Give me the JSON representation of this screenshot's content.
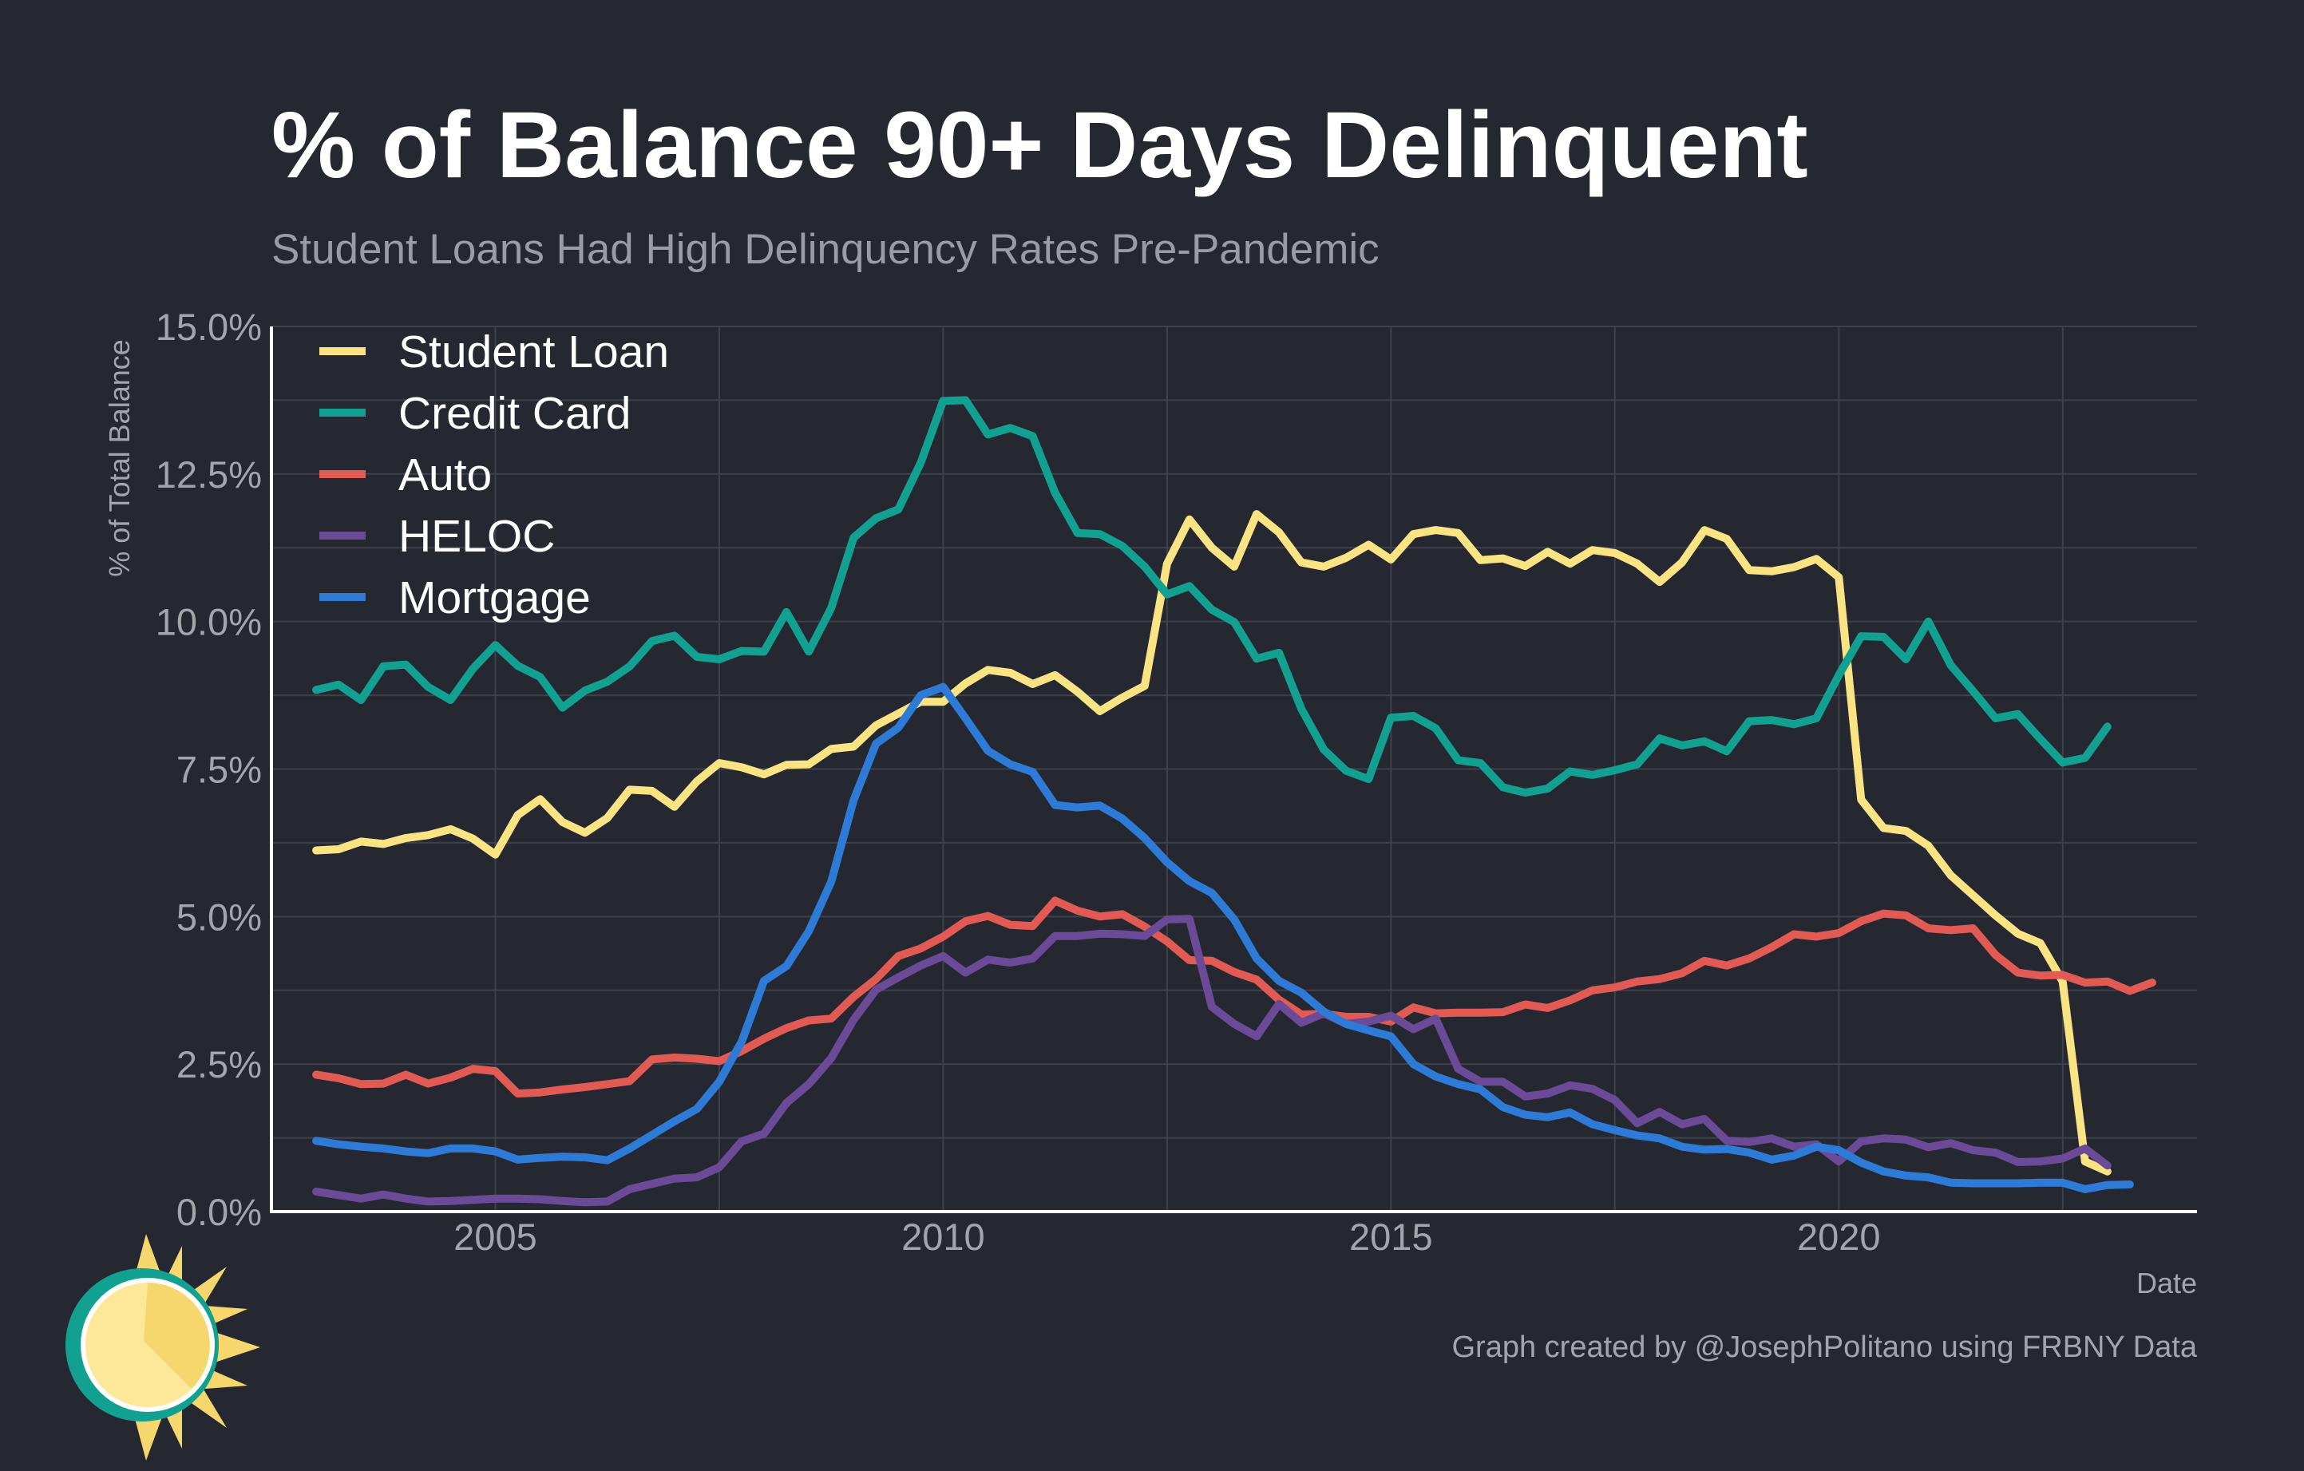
{
  "chart_data": {
    "type": "line",
    "title": "% of Balance 90+ Days Delinquent",
    "subtitle": "Student Loans Had High Delinquency Rates Pre-Pandemic",
    "xlabel": "Date",
    "ylabel": "% of Total Balance",
    "caption": "Graph created by @JosephPolitano using FRBNY Data",
    "xlim": [
      2002.5,
      2024.0
    ],
    "ylim": [
      0,
      15
    ],
    "x_ticks": [
      2005,
      2010,
      2015,
      2020
    ],
    "x_tick_labels": [
      "2005",
      "2010",
      "2015",
      "2020"
    ],
    "y_ticks": [
      0,
      2.5,
      5,
      7.5,
      10,
      12.5,
      15
    ],
    "y_tick_labels": [
      "0.0%",
      "2.5%",
      "5.0%",
      "7.5%",
      "10.0%",
      "12.5%",
      "15.0%"
    ],
    "grid": true,
    "legend_position": "top-left",
    "x_start": 2003.0,
    "x_step": 0.25,
    "series": [
      {
        "name": "Student Loan",
        "color": "#f9e383",
        "values": [
          6.12,
          6.14,
          6.27,
          6.23,
          6.33,
          6.38,
          6.48,
          6.32,
          6.05,
          6.72,
          6.99,
          6.6,
          6.42,
          6.67,
          7.15,
          7.13,
          6.86,
          7.29,
          7.6,
          7.53,
          7.41,
          7.57,
          7.58,
          7.84,
          7.88,
          8.24,
          8.44,
          8.64,
          8.64,
          8.95,
          9.18,
          9.13,
          8.94,
          9.09,
          8.81,
          8.48,
          8.71,
          8.91,
          10.98,
          11.73,
          11.25,
          10.93,
          11.82,
          11.51,
          11.0,
          10.93,
          11.08,
          11.3,
          11.05,
          11.48,
          11.55,
          11.5,
          11.04,
          11.07,
          10.94,
          11.18,
          10.98,
          11.21,
          11.16,
          10.98,
          10.67,
          11.0,
          11.55,
          11.4,
          10.87,
          10.85,
          10.92,
          11.06,
          10.75,
          6.98,
          6.5,
          6.45,
          6.2,
          5.7,
          5.36,
          5.02,
          4.71,
          4.55,
          3.9,
          0.85,
          0.68
        ]
      },
      {
        "name": "Credit Card",
        "color": "#12a091",
        "values": [
          8.84,
          8.93,
          8.67,
          9.24,
          9.27,
          8.89,
          8.67,
          9.2,
          9.6,
          9.25,
          9.06,
          8.54,
          8.83,
          8.98,
          9.24,
          9.67,
          9.76,
          9.4,
          9.36,
          9.5,
          9.49,
          10.16,
          9.49,
          10.23,
          11.42,
          11.75,
          11.9,
          12.69,
          13.74,
          13.75,
          13.17,
          13.28,
          13.14,
          12.18,
          11.5,
          11.48,
          11.28,
          10.93,
          10.46,
          10.6,
          10.2,
          9.99,
          9.37,
          9.47,
          8.52,
          7.83,
          7.47,
          7.33,
          8.37,
          8.4,
          8.19,
          7.65,
          7.6,
          7.19,
          7.1,
          7.17,
          7.46,
          7.4,
          7.48,
          7.58,
          8.02,
          7.9,
          7.97,
          7.8,
          8.31,
          8.33,
          8.26,
          8.36,
          9.09,
          9.75,
          9.74,
          9.36,
          10.0,
          9.26,
          8.82,
          8.36,
          8.43,
          8.01,
          7.61,
          7.69,
          8.22
        ]
      },
      {
        "name": "Auto",
        "color": "#e15a54",
        "values": [
          2.32,
          2.26,
          2.16,
          2.17,
          2.32,
          2.17,
          2.27,
          2.42,
          2.38,
          2.0,
          2.02,
          2.07,
          2.11,
          2.16,
          2.21,
          2.58,
          2.61,
          2.59,
          2.55,
          2.72,
          2.93,
          3.11,
          3.24,
          3.27,
          3.64,
          3.94,
          4.33,
          4.46,
          4.66,
          4.92,
          5.01,
          4.86,
          4.84,
          5.27,
          5.1,
          5.0,
          5.04,
          4.83,
          4.58,
          4.26,
          4.25,
          4.06,
          3.93,
          3.59,
          3.34,
          3.35,
          3.3,
          3.3,
          3.22,
          3.46,
          3.36,
          3.37,
          3.37,
          3.38,
          3.51,
          3.45,
          3.58,
          3.75,
          3.8,
          3.9,
          3.94,
          4.04,
          4.25,
          4.17,
          4.29,
          4.48,
          4.7,
          4.66,
          4.72,
          4.92,
          5.05,
          5.02,
          4.8,
          4.77,
          4.8,
          4.35,
          4.05,
          4.0,
          4.01,
          3.88,
          3.9,
          3.74,
          3.88
        ]
      },
      {
        "name": "HELOC",
        "color": "#6b4b97",
        "values": [
          0.34,
          0.28,
          0.22,
          0.29,
          0.22,
          0.17,
          0.18,
          0.2,
          0.22,
          0.22,
          0.21,
          0.18,
          0.16,
          0.17,
          0.38,
          0.47,
          0.56,
          0.58,
          0.75,
          1.19,
          1.32,
          1.84,
          2.16,
          2.6,
          3.25,
          3.76,
          3.97,
          4.17,
          4.33,
          4.05,
          4.27,
          4.22,
          4.29,
          4.67,
          4.67,
          4.71,
          4.7,
          4.67,
          4.95,
          4.96,
          3.47,
          3.18,
          2.97,
          3.52,
          3.2,
          3.36,
          3.18,
          3.22,
          3.32,
          3.09,
          3.27,
          2.42,
          2.2,
          2.2,
          1.95,
          2.0,
          2.14,
          2.08,
          1.89,
          1.5,
          1.69,
          1.48,
          1.57,
          1.2,
          1.18,
          1.24,
          1.1,
          1.14,
          0.85,
          1.19,
          1.24,
          1.22,
          1.09,
          1.16,
          1.04,
          1.0,
          0.84,
          0.85,
          0.9,
          1.07,
          0.78
        ]
      },
      {
        "name": "Mortgage",
        "color": "#2e7bd7",
        "values": [
          1.2,
          1.14,
          1.1,
          1.07,
          1.02,
          0.99,
          1.07,
          1.07,
          1.02,
          0.88,
          0.91,
          0.93,
          0.92,
          0.87,
          1.07,
          1.3,
          1.53,
          1.74,
          2.2,
          2.88,
          3.91,
          4.16,
          4.75,
          5.59,
          6.97,
          7.93,
          8.2,
          8.75,
          8.89,
          8.36,
          7.81,
          7.58,
          7.45,
          6.89,
          6.85,
          6.88,
          6.66,
          6.33,
          5.92,
          5.6,
          5.4,
          4.95,
          4.29,
          3.91,
          3.71,
          3.39,
          3.18,
          3.07,
          2.97,
          2.5,
          2.29,
          2.16,
          2.07,
          1.77,
          1.64,
          1.6,
          1.68,
          1.48,
          1.38,
          1.29,
          1.24,
          1.1,
          1.05,
          1.06,
          1.0,
          0.88,
          0.95,
          1.1,
          1.04,
          0.83,
          0.68,
          0.61,
          0.58,
          0.49,
          0.48,
          0.48,
          0.48,
          0.49,
          0.49,
          0.38,
          0.45,
          0.46
        ]
      }
    ]
  }
}
